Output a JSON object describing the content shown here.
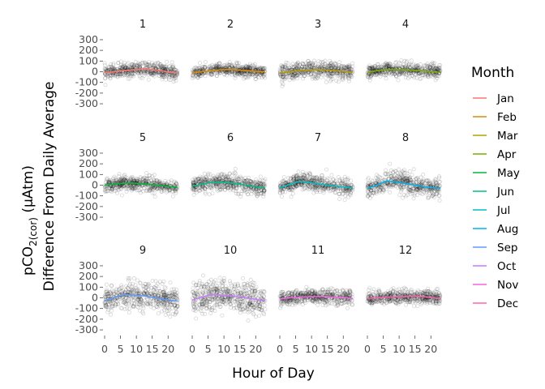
{
  "chart_data": {
    "type": "scatter",
    "facet_labels": [
      "1",
      "2",
      "3",
      "4",
      "5",
      "6",
      "7",
      "8",
      "9",
      "10",
      "11",
      "12"
    ],
    "xlabel": "Hour of Day",
    "ylabel_line1_pre": "pCO",
    "ylabel_line1_sub": "2(cor)",
    "ylabel_line1_post": " (µAtm)",
    "ylabel_line2": "Difference From Daily Average",
    "x_ticks": [
      "0",
      "5",
      "10",
      "15",
      "20"
    ],
    "xlim": [
      0,
      23
    ],
    "y_ticks": [
      -300,
      -200,
      -100,
      0,
      100,
      200,
      300
    ],
    "ylim": [
      -330,
      330
    ],
    "grid": false,
    "legend": {
      "title": "Month",
      "position": "right",
      "entries": [
        {
          "label": "Jan",
          "color": "#F8766D"
        },
        {
          "label": "Feb",
          "color": "#DE8C00"
        },
        {
          "label": "Mar",
          "color": "#B79F00"
        },
        {
          "label": "Apr",
          "color": "#7CAE00"
        },
        {
          "label": "May",
          "color": "#00BA38"
        },
        {
          "label": "Jun",
          "color": "#00C08B"
        },
        {
          "label": "Jul",
          "color": "#00BFC4"
        },
        {
          "label": "Aug",
          "color": "#00B4F0"
        },
        {
          "label": "Sep",
          "color": "#619CFF"
        },
        {
          "label": "Oct",
          "color": "#C77CFF"
        },
        {
          "label": "Nov",
          "color": "#F564E3"
        },
        {
          "label": "Dec",
          "color": "#FF64B0"
        }
      ]
    },
    "smooth_x": [
      0,
      3,
      6,
      9,
      12,
      15,
      18,
      21,
      23
    ],
    "series": [
      {
        "name": "Jan",
        "values": [
          -10,
          0,
          10,
          18,
          25,
          20,
          8,
          -5,
          -12
        ]
      },
      {
        "name": "Feb",
        "values": [
          -10,
          0,
          10,
          18,
          22,
          15,
          8,
          2,
          0
        ]
      },
      {
        "name": "Mar",
        "values": [
          -10,
          0,
          10,
          15,
          18,
          15,
          8,
          0,
          -5
        ]
      },
      {
        "name": "Apr",
        "values": [
          -5,
          10,
          18,
          20,
          18,
          12,
          5,
          -2,
          -5
        ]
      },
      {
        "name": "May",
        "values": [
          0,
          10,
          18,
          20,
          12,
          5,
          -5,
          -15,
          -20
        ]
      },
      {
        "name": "Jun",
        "values": [
          -10,
          10,
          25,
          28,
          22,
          10,
          -5,
          -20,
          -25
        ]
      },
      {
        "name": "Jul",
        "values": [
          -25,
          5,
          35,
          25,
          15,
          0,
          -10,
          -20,
          -25
        ]
      },
      {
        "name": "Aug",
        "values": [
          -30,
          0,
          40,
          30,
          15,
          0,
          -15,
          -25,
          -30
        ]
      },
      {
        "name": "Sep",
        "values": [
          -25,
          0,
          30,
          25,
          20,
          5,
          -10,
          -25,
          -30
        ]
      },
      {
        "name": "Oct",
        "values": [
          -20,
          5,
          30,
          25,
          20,
          10,
          -5,
          -20,
          -25
        ]
      },
      {
        "name": "Nov",
        "values": [
          -10,
          0,
          5,
          10,
          12,
          10,
          5,
          0,
          -5
        ]
      },
      {
        "name": "Dec",
        "values": [
          -5,
          0,
          5,
          10,
          12,
          15,
          10,
          0,
          -5
        ]
      }
    ],
    "point_spread": [
      60,
      50,
      70,
      60,
      60,
      70,
      70,
      90,
      110,
      130,
      60,
      60
    ]
  }
}
